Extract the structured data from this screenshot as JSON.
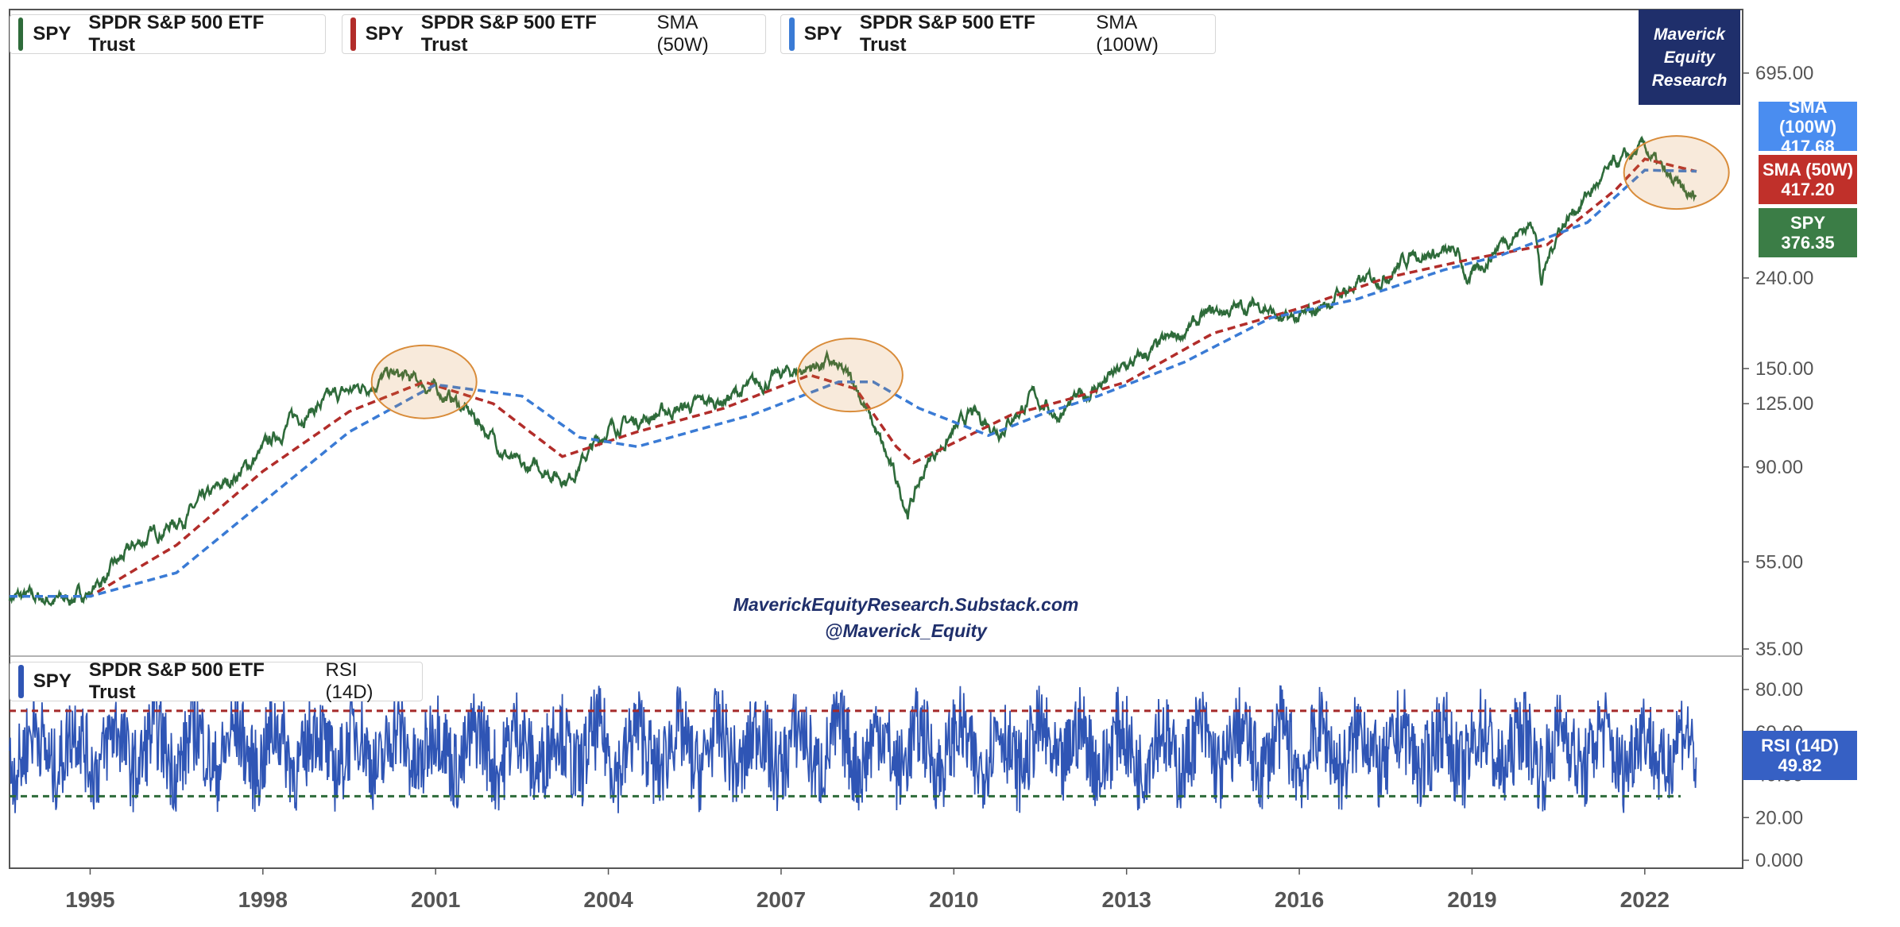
{
  "legends": [
    {
      "symbol": "SPY",
      "name": "SPDR S&P 500 ETF Trust",
      "indicator": "",
      "color": "#2e6b3a"
    },
    {
      "symbol": "SPY",
      "name": "SPDR S&P 500 ETF Trust",
      "indicator": "SMA (50W)",
      "color": "#b22d2a"
    },
    {
      "symbol": "SPY",
      "name": "SPDR S&P 500 ETF Trust",
      "indicator": "SMA (100W)",
      "color": "#3a7bd5"
    },
    {
      "symbol": "SPY",
      "name": "SPDR S&P 500 ETF Trust",
      "indicator": "RSI (14D)",
      "color": "#2f55b5"
    }
  ],
  "brand": {
    "line1": "Maverick",
    "line2": "Equity",
    "line3": "Research"
  },
  "watermark": {
    "line1": "MaverickEquityResearch.Substack.com",
    "line2": "@Maverick_Equity"
  },
  "badges": {
    "sma100": {
      "label": "SMA (100W)",
      "value": "417.68",
      "color": "#4a8df0"
    },
    "sma50": {
      "label": "SMA (50W)",
      "value": "417.20",
      "color": "#c0302a"
    },
    "spy": {
      "label": "SPY",
      "value": "376.35",
      "color": "#3b7d46"
    },
    "rsi": {
      "label": "RSI (14D)",
      "value": "49.82",
      "color": "#3660c4"
    }
  },
  "colors": {
    "price": "#2e6b3a",
    "sma50": "#b22d2a",
    "sma100": "#3a7bd5",
    "rsi": "#2f55b5",
    "rsi_upper": "#a52a2a",
    "rsi_lower": "#2e6b3a",
    "highlight": "#d98c3a"
  },
  "chart_data": [
    {
      "type": "line",
      "title": "SPY SPDR S&P 500 ETF Trust",
      "y_scale": "log",
      "ylim": [
        35,
        695
      ],
      "y_ticks": [
        "695.00",
        "240.00",
        "150.00",
        "125.00",
        "90.00",
        "55.00",
        "35.00"
      ],
      "x_ticks": [
        "1995",
        "1998",
        "2001",
        "2004",
        "2007",
        "2010",
        "2013",
        "2016",
        "2019",
        "2022"
      ],
      "x_range": [
        1993.6,
        2023.5
      ],
      "series": [
        {
          "name": "SPY",
          "x": [
            1993.6,
            1994.5,
            1995.0,
            1995.8,
            1996.8,
            1997.8,
            1998.5,
            1999.3,
            2000.2,
            2000.7,
            2001.3,
            2001.8,
            2002.5,
            2002.8,
            2003.3,
            2004.0,
            2005.0,
            2006.0,
            2007.0,
            2007.8,
            2008.3,
            2008.75,
            2009.2,
            2009.6,
            2010.3,
            2010.8,
            2011.4,
            2011.8,
            2012.6,
            2013.5,
            2014.5,
            2015.4,
            2015.7,
            2016.1,
            2016.8,
            2017.5,
            2018.0,
            2018.75,
            2018.95,
            2019.5,
            2020.1,
            2020.2,
            2020.5,
            2021.0,
            2021.5,
            2022.0,
            2022.4,
            2022.8,
            2022.9
          ],
          "values": [
            46,
            45,
            47,
            60,
            72,
            92,
            115,
            130,
            145,
            140,
            128,
            112,
            88,
            90,
            85,
            110,
            120,
            128,
            145,
            155,
            138,
            100,
            72,
            95,
            118,
            110,
            130,
            118,
            140,
            165,
            200,
            210,
            190,
            195,
            225,
            245,
            275,
            270,
            235,
            290,
            320,
            235,
            310,
            370,
            430,
            470,
            400,
            360,
            376
          ]
        },
        {
          "name": "SMA (50W)",
          "x": [
            1993.6,
            1995.0,
            1996.5,
            1998.0,
            1999.5,
            2000.8,
            2002.0,
            2003.2,
            2004.5,
            2006.0,
            2007.5,
            2008.3,
            2009.0,
            2009.3,
            2010.0,
            2011.0,
            2012.0,
            2013.0,
            2014.5,
            2016.0,
            2017.5,
            2019.0,
            2020.3,
            2021.5,
            2022.0,
            2022.9
          ],
          "values": [
            46,
            46,
            60,
            88,
            120,
            140,
            125,
            95,
            108,
            122,
            145,
            135,
            100,
            92,
            102,
            118,
            128,
            140,
            180,
            205,
            240,
            265,
            285,
            380,
            445,
            417.2
          ]
        },
        {
          "name": "SMA (100W)",
          "x": [
            1993.6,
            1995.0,
            1996.5,
            1998.0,
            1999.5,
            2001.0,
            2002.5,
            2003.5,
            2004.5,
            2006.5,
            2008.0,
            2008.6,
            2009.4,
            2010.6,
            2011.5,
            2012.5,
            2014.0,
            2015.5,
            2017.0,
            2018.5,
            2019.5,
            2021.0,
            2022.0,
            2022.9
          ],
          "values": [
            46,
            46,
            52,
            75,
            108,
            138,
            130,
            105,
            100,
            118,
            140,
            140,
            122,
            106,
            118,
            130,
            155,
            195,
            215,
            250,
            270,
            320,
            420,
            417.68
          ]
        }
      ]
    },
    {
      "type": "line",
      "title": "SPY SPDR S&P 500 ETF Trust RSI (14D)",
      "ylim": [
        0,
        90
      ],
      "y_ticks": [
        "80.00",
        "60.00",
        "40.00",
        "20.00",
        "0.000"
      ],
      "levels": [
        70,
        30
      ],
      "series": [
        {
          "name": "RSI (14D)",
          "x": [
            1993.6,
            2022.9
          ],
          "values": [
            55,
            49.82
          ]
        }
      ]
    }
  ]
}
